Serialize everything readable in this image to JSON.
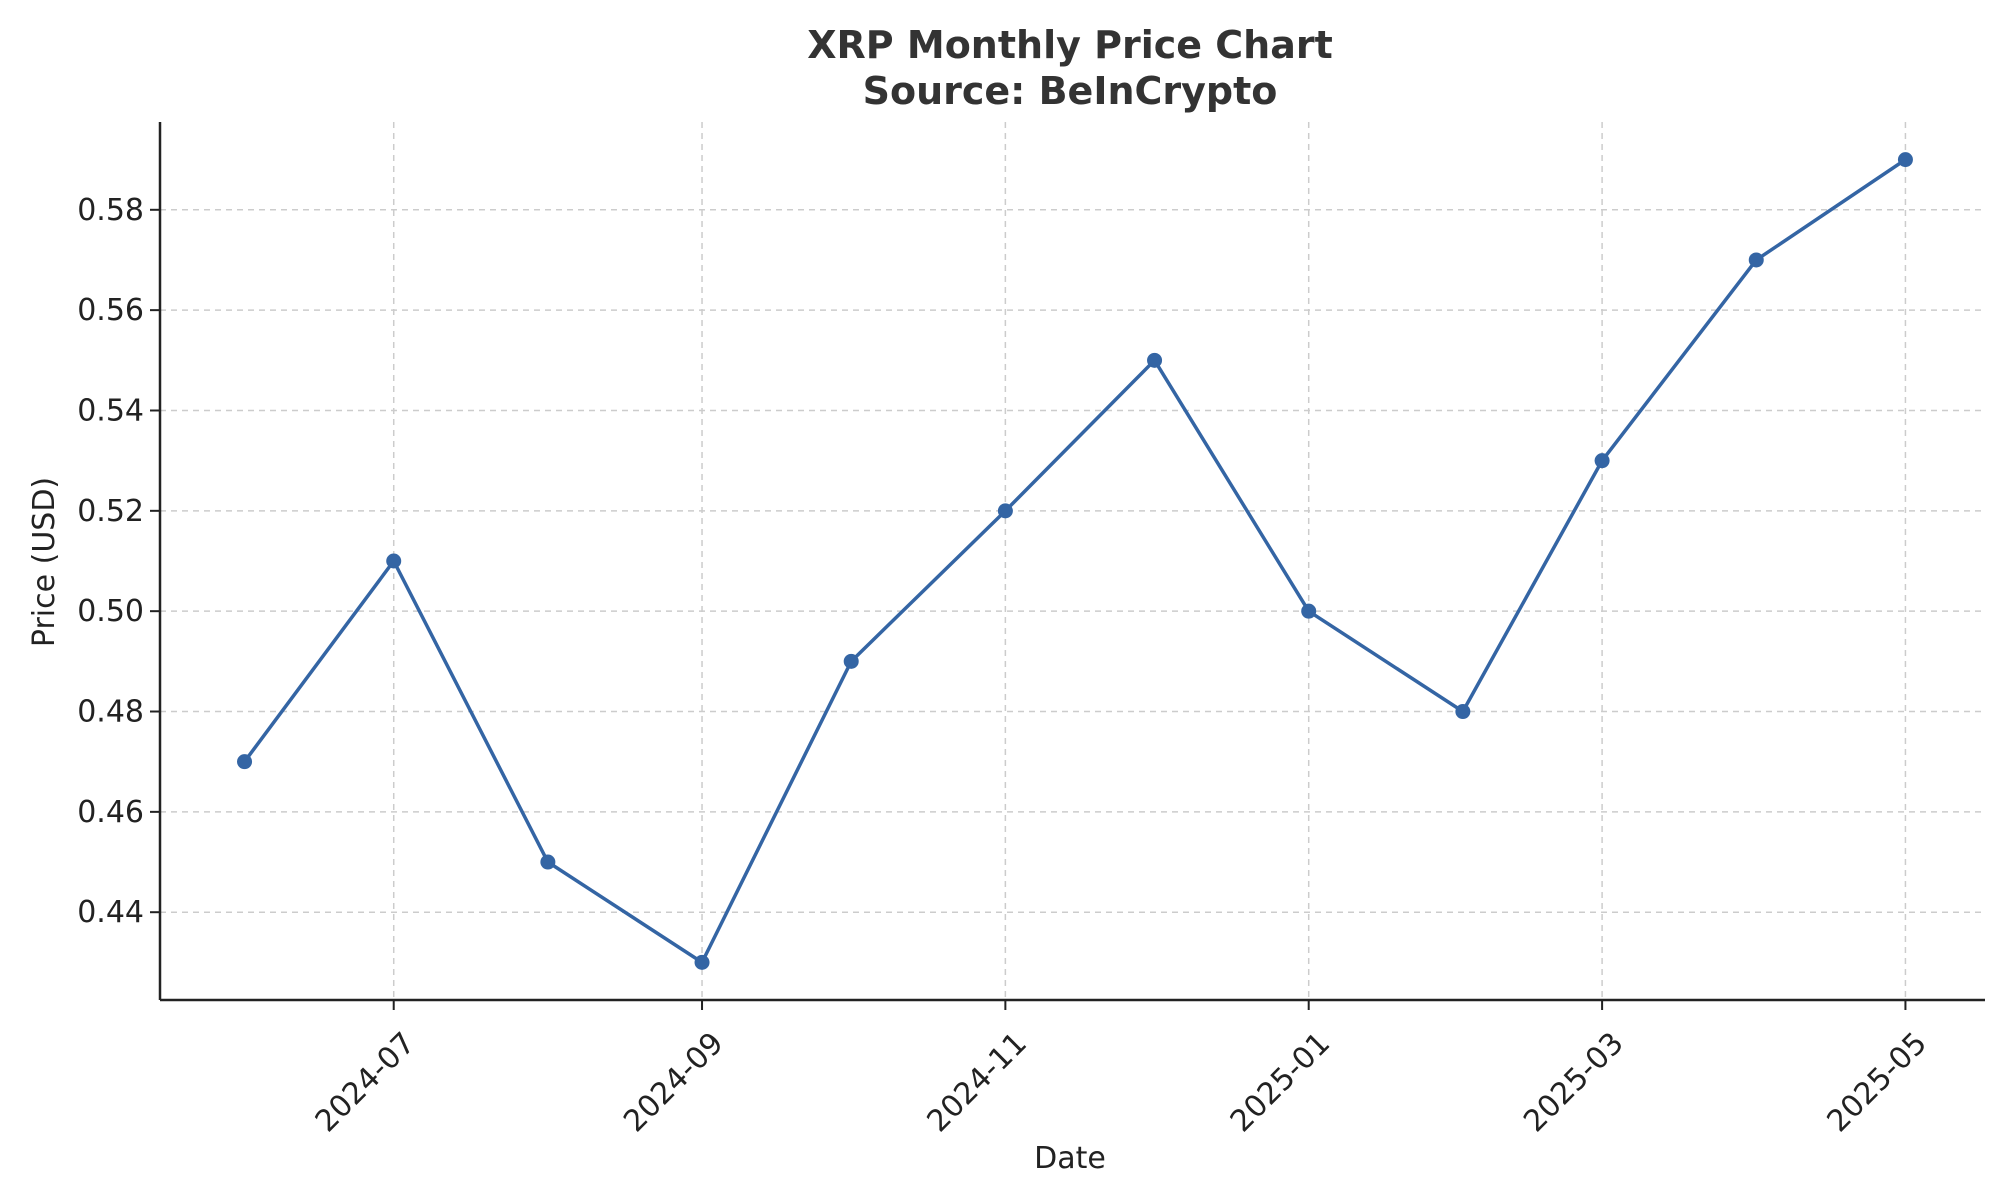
{
  "chart_data": {
    "type": "line",
    "title": "XRP Monthly Price Chart",
    "subtitle": "Source: BeInCrypto",
    "xlabel": "Date",
    "ylabel": "Price (USD)",
    "x": [
      "2024-06-01",
      "2024-07-01",
      "2024-08-01",
      "2024-09-01",
      "2024-10-01",
      "2024-11-01",
      "2024-12-01",
      "2025-01-01",
      "2025-02-01",
      "2025-03-01",
      "2025-04-01",
      "2025-05-01"
    ],
    "series": [
      {
        "values": [
          0.47,
          0.51,
          0.45,
          0.43,
          0.49,
          0.52,
          0.55,
          0.5,
          0.48,
          0.53,
          0.57,
          0.59
        ]
      }
    ],
    "x_ticks": [
      {
        "date": "2024-07-01",
        "label": "2024-07"
      },
      {
        "date": "2024-09-01",
        "label": "2024-09"
      },
      {
        "date": "2024-11-01",
        "label": "2024-11"
      },
      {
        "date": "2025-01-01",
        "label": "2025-01"
      },
      {
        "date": "2025-03-01",
        "label": "2025-03"
      },
      {
        "date": "2025-05-01",
        "label": "2025-05"
      }
    ],
    "y_ticks": [
      0.44,
      0.46,
      0.48,
      0.5,
      0.52,
      0.54,
      0.56,
      0.58
    ],
    "xlim": [
      "2024-05-15",
      "2025-05-17"
    ],
    "ylim": [
      0.4225,
      0.5975
    ],
    "grid": true,
    "line_color": "#3465a4"
  }
}
